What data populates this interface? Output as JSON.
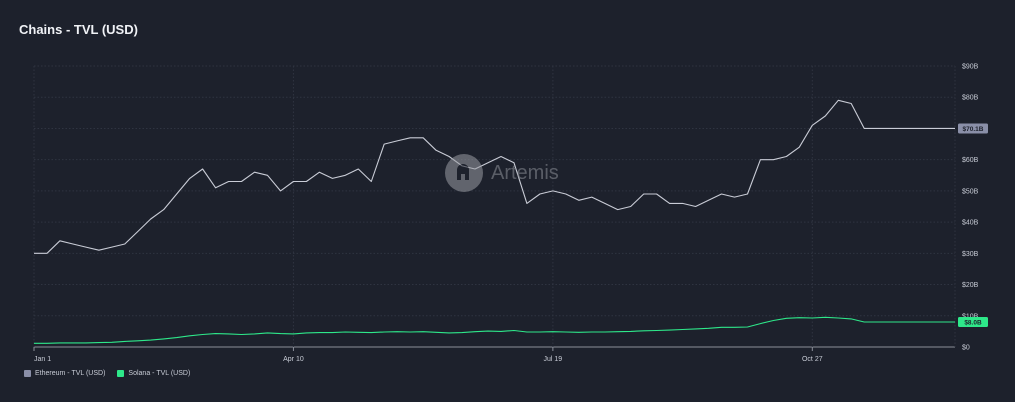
{
  "page": {
    "title": "Chains - TVL (USD)",
    "watermark": "Artemis"
  },
  "legend": [
    {
      "label": "Ethereum - TVL (USD)",
      "color": "#8a8fa8"
    },
    {
      "label": "Solana - TVL (USD)",
      "color": "#2ee88a"
    }
  ],
  "colors": {
    "background": "#1d212c",
    "grid": "#2f3441",
    "ethereum": "#c9ccd6",
    "solana": "#2ee88a",
    "eth_badge": "#8a8fa8",
    "sol_badge": "#2ee88a"
  },
  "chart_data": {
    "type": "line",
    "title": "Chains - TVL (USD)",
    "xlabel": "",
    "ylabel": "",
    "x_ticks": [
      "Jan 1",
      "Apr 10",
      "Jul 19",
      "Oct 27"
    ],
    "y_ticks": [
      "$0",
      "$10B",
      "$20B",
      "$30B",
      "$40B",
      "$50B",
      "$60B",
      "$70B",
      "$80B",
      "$90B"
    ],
    "ylim": [
      0,
      90
    ],
    "y_unit": "B",
    "x": [
      0,
      5,
      10,
      15,
      20,
      25,
      30,
      35,
      40,
      45,
      50,
      55,
      60,
      65,
      70,
      75,
      80,
      85,
      90,
      95,
      100,
      105,
      110,
      115,
      120,
      125,
      130,
      135,
      140,
      145,
      150,
      155,
      160,
      165,
      170,
      175,
      180,
      185,
      190,
      195,
      200,
      205,
      210,
      215,
      220,
      225,
      230,
      235,
      240,
      245,
      250,
      255,
      260,
      265,
      270,
      275,
      280,
      285,
      290,
      295,
      300,
      305,
      310,
      315,
      320,
      325,
      330,
      335,
      340,
      345,
      350,
      355
    ],
    "series": [
      {
        "name": "Ethereum - TVL (USD)",
        "values": [
          30,
          30,
          34,
          33,
          32,
          31,
          32,
          33,
          37,
          41,
          44,
          49,
          54,
          57,
          51,
          53,
          53,
          56,
          55,
          50,
          53,
          53,
          56,
          54,
          55,
          57,
          53,
          65,
          66,
          67,
          67,
          63,
          61,
          58,
          57,
          59,
          61,
          59,
          46,
          49,
          50,
          49,
          47,
          48,
          46,
          44,
          45,
          49,
          49,
          46,
          46,
          45,
          47,
          49,
          48,
          49,
          60,
          60,
          61,
          64,
          71,
          74,
          79,
          78,
          70,
          70,
          70,
          70,
          70,
          70,
          70,
          70
        ],
        "last_value_label": "$70.1B"
      },
      {
        "name": "Solana - TVL (USD)",
        "values": [
          1.2,
          1.2,
          1.3,
          1.3,
          1.3,
          1.4,
          1.5,
          1.8,
          2.0,
          2.2,
          2.6,
          3.0,
          3.6,
          4.0,
          4.3,
          4.2,
          4.0,
          4.2,
          4.5,
          4.3,
          4.2,
          4.5,
          4.6,
          4.6,
          4.8,
          4.7,
          4.6,
          4.8,
          4.9,
          4.8,
          4.9,
          4.7,
          4.5,
          4.6,
          4.9,
          5.1,
          5.0,
          5.3,
          4.8,
          4.8,
          4.9,
          4.8,
          4.7,
          4.8,
          4.8,
          4.9,
          5.0,
          5.2,
          5.3,
          5.4,
          5.6,
          5.8,
          6.0,
          6.3,
          6.3,
          6.4,
          7.5,
          8.5,
          9.2,
          9.4,
          9.3,
          9.5,
          9.3,
          9.0,
          8.0,
          8.0,
          8.0,
          8.0,
          8.0,
          8.0,
          8.0,
          8.0
        ],
        "last_value_label": "$8.0B"
      }
    ],
    "grid": true,
    "legend_position": "bottom-left"
  }
}
